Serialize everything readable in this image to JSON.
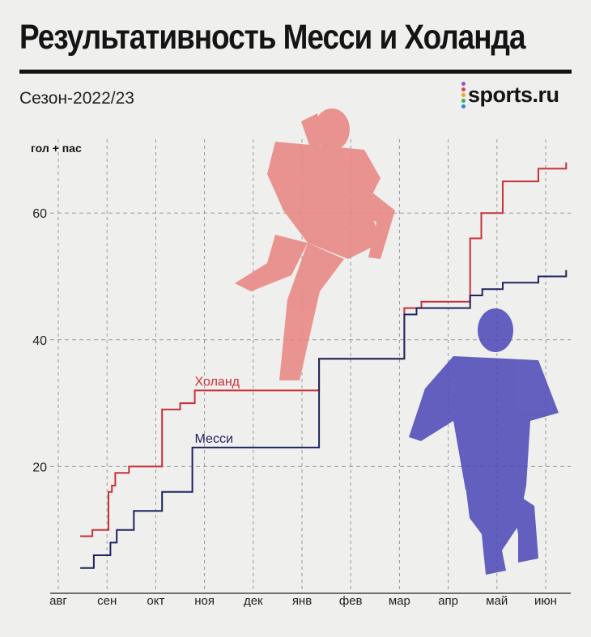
{
  "header": {
    "title": "Результативность Месси и Холанда",
    "subtitle": "Сезон-2022/23",
    "logo": "sports.ru"
  },
  "colors": {
    "haaland": "#c8323a",
    "messi": "#1f2460",
    "grid": "#9a9a9a",
    "background": "#efefed",
    "logo_dots": [
      "#8f59c8",
      "#e0425a",
      "#f2a22b",
      "#3fae58",
      "#2b87d8"
    ]
  },
  "chart_data": {
    "type": "line",
    "step": true,
    "ylabel": "гол + пас",
    "yticks": [
      20,
      40,
      60
    ],
    "ylim": [
      0,
      70
    ],
    "months": [
      "авг",
      "сен",
      "окт",
      "ноя",
      "дек",
      "янв",
      "фев",
      "мар",
      "апр",
      "май",
      "июн"
    ],
    "xlim": [
      0,
      10.6
    ],
    "grid": true,
    "series": [
      {
        "name": "Холанд",
        "color": "#c8323a",
        "points": [
          [
            0.45,
            9
          ],
          [
            0.7,
            9
          ],
          [
            0.7,
            10
          ],
          [
            1.03,
            10
          ],
          [
            1.03,
            16
          ],
          [
            1.1,
            16
          ],
          [
            1.1,
            17
          ],
          [
            1.17,
            17
          ],
          [
            1.17,
            19
          ],
          [
            1.45,
            19
          ],
          [
            1.45,
            20
          ],
          [
            2.13,
            20
          ],
          [
            2.13,
            29
          ],
          [
            2.5,
            29
          ],
          [
            2.5,
            30
          ],
          [
            2.8,
            30
          ],
          [
            2.8,
            32
          ],
          [
            5.35,
            32
          ],
          [
            5.35,
            37
          ],
          [
            7.1,
            37
          ],
          [
            7.1,
            45
          ],
          [
            7.45,
            45
          ],
          [
            7.45,
            46
          ],
          [
            8.45,
            46
          ],
          [
            8.45,
            56
          ],
          [
            8.68,
            56
          ],
          [
            8.68,
            60
          ],
          [
            9.12,
            60
          ],
          [
            9.12,
            65
          ],
          [
            9.85,
            65
          ],
          [
            9.85,
            67
          ],
          [
            10.42,
            67
          ],
          [
            10.42,
            68
          ]
        ]
      },
      {
        "name": "Месси",
        "color": "#1f2460",
        "points": [
          [
            0.45,
            4
          ],
          [
            0.73,
            4
          ],
          [
            0.73,
            6
          ],
          [
            1.07,
            6
          ],
          [
            1.07,
            8
          ],
          [
            1.2,
            8
          ],
          [
            1.2,
            10
          ],
          [
            1.55,
            10
          ],
          [
            1.55,
            13
          ],
          [
            2.13,
            13
          ],
          [
            2.13,
            16
          ],
          [
            2.75,
            16
          ],
          [
            2.75,
            23
          ],
          [
            5.35,
            23
          ],
          [
            5.35,
            32
          ],
          [
            5.35,
            37
          ],
          [
            7.1,
            37
          ],
          [
            7.1,
            44
          ],
          [
            7.35,
            44
          ],
          [
            7.35,
            45
          ],
          [
            8.45,
            45
          ],
          [
            8.45,
            47
          ],
          [
            8.7,
            47
          ],
          [
            8.7,
            48
          ],
          [
            9.12,
            48
          ],
          [
            9.12,
            49
          ],
          [
            9.85,
            49
          ],
          [
            9.85,
            50
          ],
          [
            10.42,
            50
          ],
          [
            10.42,
            51
          ]
        ]
      }
    ],
    "labels": [
      {
        "series": "Холанд",
        "text": "Холанд",
        "x": 2.8,
        "y": 32
      },
      {
        "series": "Месси",
        "text": "Месси",
        "x": 2.8,
        "y": 23
      }
    ]
  }
}
